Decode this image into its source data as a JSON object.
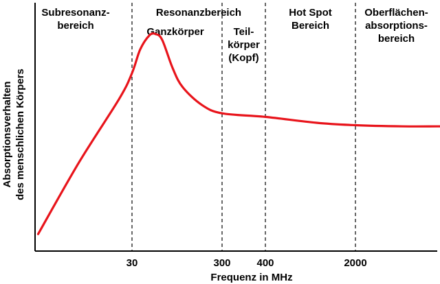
{
  "chart_data": {
    "type": "line",
    "ylabel_lines": [
      "Absorptionsverhalten",
      "des menschlichen Körpers"
    ],
    "xlabel": "Frequenz in MHz",
    "x_scale": "log",
    "x_ticks": [
      30,
      300,
      400,
      2000
    ],
    "regions": [
      {
        "lines": [
          "Subresonanz-",
          "bereich"
        ],
        "from": 5,
        "to": 30
      },
      {
        "lines": [
          "Resonanzbereich"
        ],
        "from": 30,
        "to": 400
      },
      {
        "lines": [
          "Hot Spot",
          "Bereich"
        ],
        "from": 400,
        "to": 2000
      },
      {
        "lines": [
          "Oberflächen-",
          "absorptions-",
          "bereich"
        ],
        "from": 2000,
        "to": 20000
      }
    ],
    "annotations": [
      {
        "lines": [
          "Ganzkörper"
        ],
        "from": 30,
        "to": 300
      },
      {
        "lines": [
          "Teil-",
          "körper",
          "(Kopf)"
        ],
        "from": 300,
        "to": 400
      }
    ],
    "dividers": [
      30,
      300,
      400,
      2000
    ],
    "series": [
      {
        "color": "#e8141b",
        "points": [
          [
            6,
            0.04
          ],
          [
            12,
            0.34
          ],
          [
            24,
            0.61
          ],
          [
            30,
            0.72
          ],
          [
            37,
            0.82
          ],
          [
            47,
            0.88
          ],
          [
            55,
            0.885
          ],
          [
            65,
            0.86
          ],
          [
            85,
            0.74
          ],
          [
            110,
            0.66
          ],
          [
            180,
            0.585
          ],
          [
            300,
            0.55
          ],
          [
            400,
            0.535
          ],
          [
            1000,
            0.51
          ],
          [
            2000,
            0.5
          ],
          [
            5000,
            0.495
          ],
          [
            10000,
            0.495
          ],
          [
            15000,
            0.495
          ]
        ]
      }
    ]
  }
}
